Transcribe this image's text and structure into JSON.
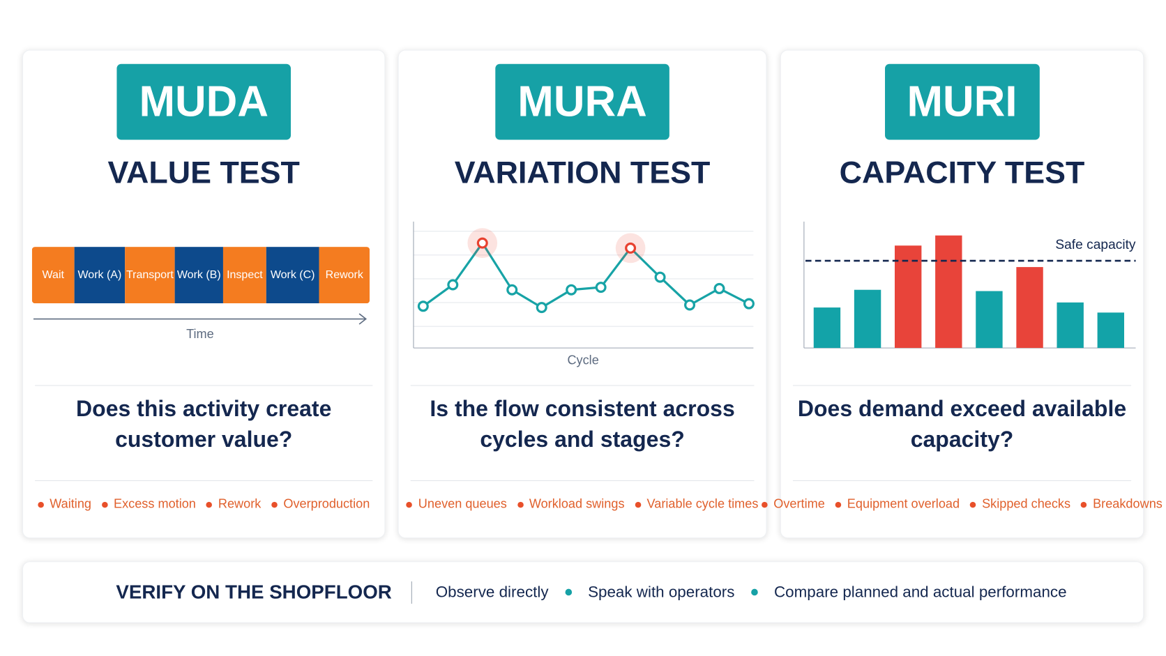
{
  "cards": [
    {
      "badge": "MUDA",
      "title": "VALUE TEST",
      "flow": {
        "segments": [
          {
            "label": "Wait",
            "color": "#f47c20"
          },
          {
            "label": "Work (A)",
            "color": "#0d4a8c"
          },
          {
            "label": "Transport",
            "color": "#f47c20"
          },
          {
            "label": "Work (B)",
            "color": "#0d4a8c"
          },
          {
            "label": "Inspect",
            "color": "#f47c20"
          },
          {
            "label": "Work (C)",
            "color": "#0d4a8c"
          },
          {
            "label": "Rework",
            "color": "#f47c20"
          }
        ],
        "axis_label": "Time"
      },
      "question": "Does this activity create customer value?",
      "examples": [
        "Waiting",
        "Excess motion",
        "Rework",
        "Overproduction"
      ]
    },
    {
      "badge": "MURA",
      "title": "VARIATION TEST",
      "chart": {
        "type": "line",
        "x_label": "Cycle",
        "values": [
          33,
          50,
          83,
          46,
          32,
          46,
          48,
          79,
          56,
          34,
          47,
          35
        ],
        "ylim": [
          0,
          100
        ],
        "color": "#17a3a6",
        "highlight": [
          2,
          7
        ],
        "highlight_color": "#e8412f"
      },
      "question": "Is the flow consistent across cycles and stages?",
      "examples": [
        "Uneven queues",
        "Workload swings",
        "Variable cycle times"
      ]
    },
    {
      "badge": "MURI",
      "title": "CAPACITY TEST",
      "chart": {
        "type": "bar",
        "values": [
          32,
          46,
          81,
          89,
          45,
          64,
          36,
          28
        ],
        "ylim": [
          0,
          100
        ],
        "colors": [
          "#13a3a8",
          "#13a3a8",
          "#e8443a",
          "#e8443a",
          "#13a3a8",
          "#e8443a",
          "#13a3a8",
          "#13a3a8"
        ],
        "threshold": {
          "label": "Safe capacity",
          "value": 69
        }
      },
      "question": "Does demand exceed available capacity?",
      "examples": [
        "Overtime",
        "Equipment overload",
        "Skipped checks",
        "Breakdowns"
      ]
    }
  ],
  "footer": {
    "title": "VERIFY ON THE SHOPFLOOR",
    "items": [
      "Observe directly",
      "Speak with operators",
      "Compare planned and actual performance"
    ]
  }
}
